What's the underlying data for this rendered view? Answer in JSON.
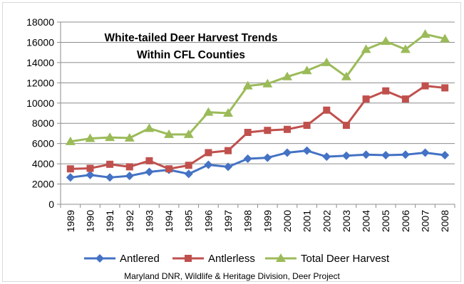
{
  "chart_data": {
    "type": "line",
    "title_lines": [
      "White-tailed Deer  Harvest Trends",
      "Within CFL Counties"
    ],
    "x": [
      "1989",
      "1990",
      "1991",
      "1992",
      "1993",
      "1994",
      "1995",
      "1996",
      "1997",
      "1998",
      "1999",
      "2000",
      "2001",
      "2002",
      "2003",
      "2004",
      "2005",
      "2006",
      "2007",
      "2008"
    ],
    "ylim": [
      0,
      18000
    ],
    "yticks": [
      0,
      2000,
      4000,
      6000,
      8000,
      10000,
      12000,
      14000,
      16000,
      18000
    ],
    "grid": true,
    "legend_position": "bottom",
    "series": [
      {
        "name": "Antlered",
        "color": "#4472C4",
        "marker": "diamond",
        "values": [
          2650,
          2900,
          2650,
          2800,
          3200,
          3400,
          3000,
          3900,
          3700,
          4500,
          4600,
          5100,
          5300,
          4700,
          4800,
          4900,
          4850,
          4900,
          5100,
          4850
        ]
      },
      {
        "name": "Antlerless",
        "color": "#C0504D",
        "marker": "square",
        "values": [
          3500,
          3550,
          3950,
          3700,
          4300,
          3500,
          3850,
          5100,
          5300,
          7100,
          7300,
          7400,
          7800,
          9300,
          7800,
          10400,
          11200,
          10400,
          11700,
          11500
        ]
      },
      {
        "name": "Total Deer Harvest",
        "color": "#9BBB59",
        "marker": "triangle",
        "values": [
          6200,
          6500,
          6600,
          6550,
          7500,
          6900,
          6900,
          9100,
          9000,
          11700,
          11900,
          12600,
          13200,
          14000,
          12600,
          15300,
          16100,
          15300,
          16800,
          16350
        ]
      }
    ]
  },
  "footer": {
    "source": "Maryland DNR, Wildlife & Heritage Division, Deer Project"
  }
}
